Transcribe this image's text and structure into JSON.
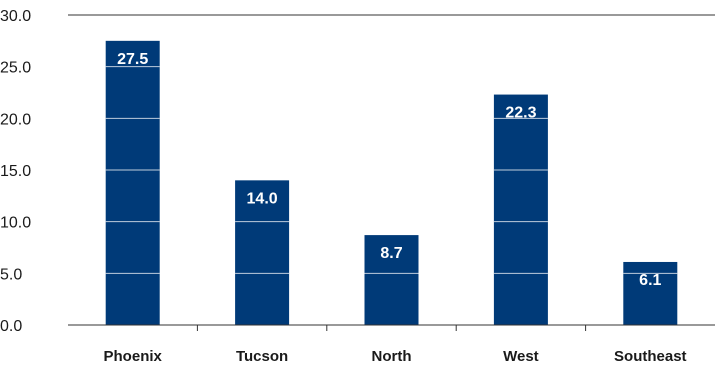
{
  "chart_data": {
    "type": "bar",
    "title": "",
    "xlabel": "",
    "ylabel": "",
    "categories": [
      "Phoenix",
      "Tucson",
      "North",
      "West",
      "Southeast"
    ],
    "values": [
      27.5,
      14.0,
      8.7,
      22.3,
      6.1
    ],
    "data_labels": [
      "27.5",
      "14.0",
      "8.7",
      "22.3",
      "6.1"
    ],
    "ylim": [
      0,
      30
    ],
    "yticks": [
      0,
      5,
      10,
      15,
      20,
      25,
      30
    ],
    "ytick_labels": [
      "0.0",
      "5.0",
      "10.0",
      "15.0",
      "20.0",
      "25.0",
      "30.0"
    ],
    "grid": "inside bars only",
    "colors": {
      "bar": "#003a78",
      "gridline_on_bar": "#ffffff",
      "axis": "#333333",
      "data_label_text": "#ffffff"
    }
  }
}
